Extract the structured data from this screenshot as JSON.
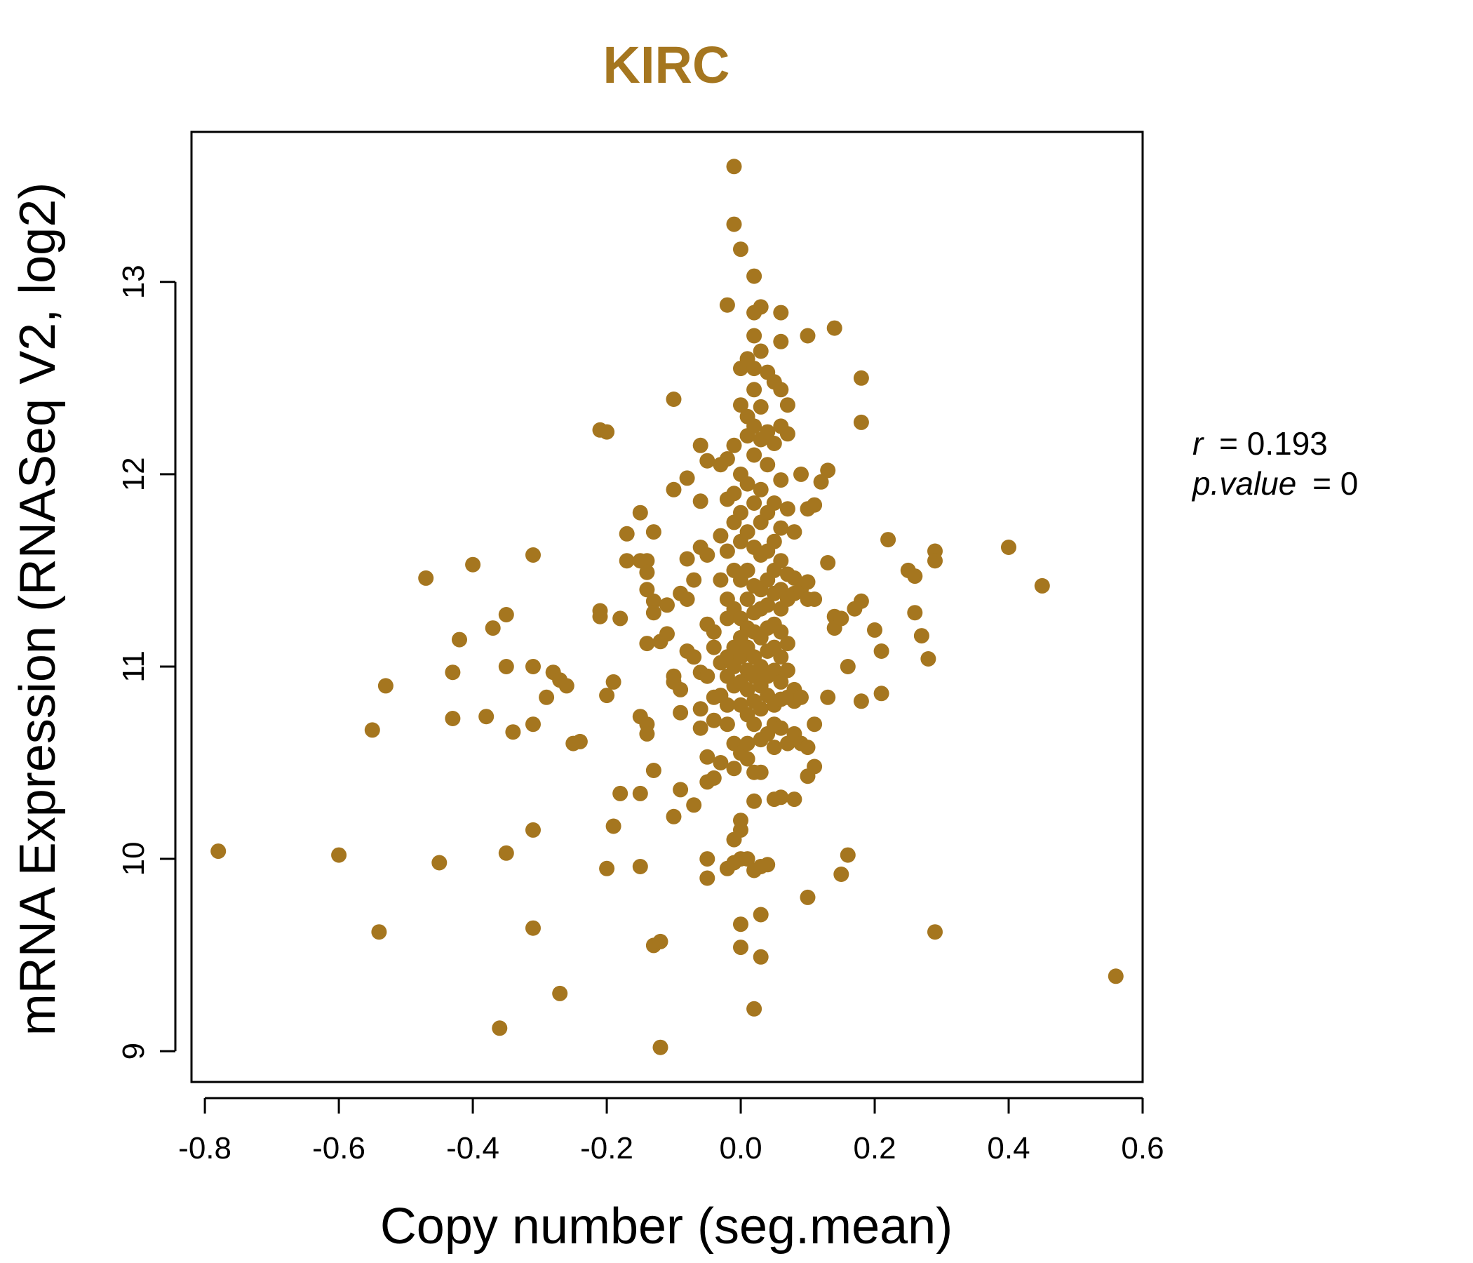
{
  "colors": {
    "point": "#A5761F",
    "title": "#A5761F",
    "axis": "#000000"
  },
  "stats": {
    "r_label": "r",
    "r_value": "0.193",
    "p_label": "p.value",
    "p_value": "0"
  },
  "chart_data": {
    "type": "scatter",
    "title": "KIRC",
    "xlabel": "Copy number (seg.mean)",
    "ylabel": "mRNA Expression (RNASeq V2, log2)",
    "xlim": [
      -0.82,
      0.6
    ],
    "ylim": [
      8.84,
      13.78
    ],
    "xticks": [
      -0.8,
      -0.6,
      -0.4,
      -0.2,
      0.0,
      0.2,
      0.4,
      0.6
    ],
    "xtick_labels": [
      "-0.8",
      "-0.6",
      "-0.4",
      "-0.2",
      "0.0",
      "0.2",
      "0.4",
      "0.6"
    ],
    "yticks": [
      9,
      10,
      11,
      12,
      13
    ],
    "ytick_labels": [
      "9",
      "10",
      "11",
      "12",
      "13"
    ],
    "grid": false,
    "points": [
      [
        -0.78,
        10.04
      ],
      [
        -0.6,
        10.02
      ],
      [
        -0.54,
        9.62
      ],
      [
        -0.55,
        10.67
      ],
      [
        -0.53,
        10.9
      ],
      [
        -0.47,
        11.46
      ],
      [
        -0.45,
        9.98
      ],
      [
        -0.43,
        10.97
      ],
      [
        -0.43,
        10.73
      ],
      [
        -0.42,
        11.14
      ],
      [
        -0.4,
        11.53
      ],
      [
        -0.38,
        10.74
      ],
      [
        -0.37,
        11.2
      ],
      [
        -0.36,
        9.12
      ],
      [
        -0.35,
        11.27
      ],
      [
        -0.35,
        11.0
      ],
      [
        -0.35,
        10.03
      ],
      [
        -0.34,
        10.66
      ],
      [
        -0.31,
        11.58
      ],
      [
        -0.31,
        11.0
      ],
      [
        -0.31,
        10.7
      ],
      [
        -0.31,
        10.15
      ],
      [
        -0.31,
        9.64
      ],
      [
        -0.29,
        10.84
      ],
      [
        -0.28,
        10.97
      ],
      [
        -0.27,
        10.93
      ],
      [
        -0.27,
        9.3
      ],
      [
        -0.26,
        10.9
      ],
      [
        -0.25,
        10.6
      ],
      [
        -0.24,
        10.61
      ],
      [
        -0.21,
        12.23
      ],
      [
        -0.21,
        11.29
      ],
      [
        -0.21,
        11.26
      ],
      [
        -0.2,
        12.22
      ],
      [
        -0.2,
        9.95
      ],
      [
        -0.2,
        10.85
      ],
      [
        -0.19,
        10.92
      ],
      [
        -0.19,
        10.17
      ],
      [
        -0.18,
        11.25
      ],
      [
        -0.18,
        10.34
      ],
      [
        -0.17,
        11.69
      ],
      [
        -0.17,
        11.55
      ],
      [
        -0.15,
        11.8
      ],
      [
        -0.15,
        11.55
      ],
      [
        -0.15,
        10.74
      ],
      [
        -0.15,
        10.34
      ],
      [
        -0.15,
        9.96
      ],
      [
        -0.14,
        11.55
      ],
      [
        -0.14,
        11.49
      ],
      [
        -0.14,
        11.4
      ],
      [
        -0.14,
        10.7
      ],
      [
        -0.14,
        10.65
      ],
      [
        -0.14,
        11.12
      ],
      [
        -0.13,
        11.7
      ],
      [
        -0.13,
        11.34
      ],
      [
        -0.13,
        11.28
      ],
      [
        -0.13,
        10.46
      ],
      [
        -0.13,
        9.55
      ],
      [
        -0.12,
        11.13
      ],
      [
        -0.12,
        9.57
      ],
      [
        -0.12,
        9.02
      ],
      [
        -0.11,
        11.17
      ],
      [
        -0.11,
        11.32
      ],
      [
        -0.1,
        12.39
      ],
      [
        -0.1,
        11.92
      ],
      [
        -0.1,
        10.95
      ],
      [
        -0.1,
        10.92
      ],
      [
        -0.1,
        10.22
      ],
      [
        -0.09,
        11.38
      ],
      [
        -0.09,
        10.88
      ],
      [
        -0.09,
        10.76
      ],
      [
        -0.09,
        10.36
      ],
      [
        -0.08,
        11.98
      ],
      [
        -0.08,
        11.56
      ],
      [
        -0.08,
        11.35
      ],
      [
        -0.08,
        11.08
      ],
      [
        -0.07,
        11.05
      ],
      [
        -0.07,
        10.28
      ],
      [
        -0.07,
        11.45
      ],
      [
        -0.06,
        12.15
      ],
      [
        -0.06,
        11.86
      ],
      [
        -0.06,
        11.62
      ],
      [
        -0.06,
        10.97
      ],
      [
        -0.06,
        10.78
      ],
      [
        -0.06,
        10.68
      ],
      [
        -0.05,
        12.07
      ],
      [
        -0.05,
        11.58
      ],
      [
        -0.05,
        11.22
      ],
      [
        -0.05,
        10.95
      ],
      [
        -0.05,
        10.53
      ],
      [
        -0.05,
        10.4
      ],
      [
        -0.05,
        10.0
      ],
      [
        -0.05,
        9.9
      ],
      [
        -0.04,
        11.18
      ],
      [
        -0.04,
        11.1
      ],
      [
        -0.04,
        10.84
      ],
      [
        -0.04,
        10.72
      ],
      [
        -0.04,
        10.42
      ],
      [
        -0.03,
        12.05
      ],
      [
        -0.03,
        11.68
      ],
      [
        -0.03,
        11.45
      ],
      [
        -0.03,
        11.02
      ],
      [
        -0.03,
        10.85
      ],
      [
        -0.03,
        10.5
      ],
      [
        -0.02,
        12.88
      ],
      [
        -0.02,
        12.08
      ],
      [
        -0.02,
        11.87
      ],
      [
        -0.02,
        11.6
      ],
      [
        -0.02,
        11.35
      ],
      [
        -0.02,
        11.25
      ],
      [
        -0.02,
        11.05
      ],
      [
        -0.02,
        10.95
      ],
      [
        -0.02,
        10.8
      ],
      [
        -0.02,
        10.7
      ],
      [
        -0.02,
        9.95
      ],
      [
        -0.01,
        13.3
      ],
      [
        -0.01,
        12.15
      ],
      [
        -0.01,
        11.9
      ],
      [
        -0.01,
        11.75
      ],
      [
        -0.01,
        11.5
      ],
      [
        -0.01,
        11.3
      ],
      [
        -0.01,
        11.1
      ],
      [
        -0.01,
        11.0
      ],
      [
        -0.01,
        10.9
      ],
      [
        -0.01,
        10.6
      ],
      [
        -0.01,
        10.47
      ],
      [
        -0.01,
        9.98
      ],
      [
        -0.01,
        10.1
      ],
      [
        -0.01,
        13.6
      ],
      [
        0.0,
        13.17
      ],
      [
        0.0,
        12.55
      ],
      [
        0.0,
        12.36
      ],
      [
        0.0,
        12.0
      ],
      [
        0.0,
        11.8
      ],
      [
        0.0,
        11.65
      ],
      [
        0.0,
        11.45
      ],
      [
        0.0,
        11.25
      ],
      [
        0.0,
        11.15
      ],
      [
        0.0,
        11.05
      ],
      [
        0.0,
        10.92
      ],
      [
        0.0,
        10.8
      ],
      [
        0.0,
        10.55
      ],
      [
        0.0,
        10.2
      ],
      [
        0.0,
        10.15
      ],
      [
        0.0,
        9.66
      ],
      [
        0.0,
        9.54
      ],
      [
        0.0,
        10.0
      ],
      [
        0.01,
        12.6
      ],
      [
        0.01,
        12.3
      ],
      [
        0.01,
        12.2
      ],
      [
        0.01,
        11.95
      ],
      [
        0.01,
        11.7
      ],
      [
        0.01,
        11.5
      ],
      [
        0.01,
        11.35
      ],
      [
        0.01,
        11.2
      ],
      [
        0.01,
        11.1
      ],
      [
        0.01,
        10.98
      ],
      [
        0.01,
        10.88
      ],
      [
        0.01,
        10.75
      ],
      [
        0.01,
        10.6
      ],
      [
        0.01,
        10.52
      ],
      [
        0.01,
        10.0
      ],
      [
        0.02,
        13.03
      ],
      [
        0.02,
        12.84
      ],
      [
        0.02,
        12.72
      ],
      [
        0.02,
        12.55
      ],
      [
        0.02,
        12.44
      ],
      [
        0.02,
        12.25
      ],
      [
        0.02,
        12.1
      ],
      [
        0.02,
        11.85
      ],
      [
        0.02,
        11.62
      ],
      [
        0.02,
        11.42
      ],
      [
        0.02,
        11.28
      ],
      [
        0.02,
        11.18
      ],
      [
        0.02,
        11.05
      ],
      [
        0.02,
        10.95
      ],
      [
        0.02,
        10.82
      ],
      [
        0.02,
        10.7
      ],
      [
        0.02,
        10.45
      ],
      [
        0.02,
        10.3
      ],
      [
        0.02,
        9.94
      ],
      [
        0.02,
        9.22
      ],
      [
        0.03,
        12.87
      ],
      [
        0.03,
        12.64
      ],
      [
        0.03,
        12.35
      ],
      [
        0.03,
        12.18
      ],
      [
        0.03,
        11.92
      ],
      [
        0.03,
        11.75
      ],
      [
        0.03,
        11.58
      ],
      [
        0.03,
        11.4
      ],
      [
        0.03,
        11.3
      ],
      [
        0.03,
        11.15
      ],
      [
        0.03,
        11.0
      ],
      [
        0.03,
        10.9
      ],
      [
        0.03,
        10.78
      ],
      [
        0.03,
        10.62
      ],
      [
        0.03,
        10.45
      ],
      [
        0.03,
        9.96
      ],
      [
        0.03,
        9.71
      ],
      [
        0.03,
        9.49
      ],
      [
        0.04,
        12.53
      ],
      [
        0.04,
        12.22
      ],
      [
        0.04,
        12.05
      ],
      [
        0.04,
        11.8
      ],
      [
        0.04,
        11.6
      ],
      [
        0.04,
        11.45
      ],
      [
        0.04,
        11.32
      ],
      [
        0.04,
        11.2
      ],
      [
        0.04,
        11.08
      ],
      [
        0.04,
        10.95
      ],
      [
        0.04,
        10.85
      ],
      [
        0.04,
        10.65
      ],
      [
        0.04,
        9.97
      ],
      [
        0.05,
        12.48
      ],
      [
        0.05,
        12.16
      ],
      [
        0.05,
        11.85
      ],
      [
        0.05,
        11.65
      ],
      [
        0.05,
        11.5
      ],
      [
        0.05,
        11.38
      ],
      [
        0.05,
        11.22
      ],
      [
        0.05,
        11.1
      ],
      [
        0.05,
        10.98
      ],
      [
        0.05,
        10.8
      ],
      [
        0.05,
        10.7
      ],
      [
        0.05,
        10.58
      ],
      [
        0.05,
        10.31
      ],
      [
        0.06,
        12.84
      ],
      [
        0.06,
        12.69
      ],
      [
        0.06,
        12.44
      ],
      [
        0.06,
        12.25
      ],
      [
        0.06,
        11.97
      ],
      [
        0.06,
        11.72
      ],
      [
        0.06,
        11.55
      ],
      [
        0.06,
        11.4
      ],
      [
        0.06,
        11.3
      ],
      [
        0.06,
        11.18
      ],
      [
        0.06,
        11.05
      ],
      [
        0.06,
        10.92
      ],
      [
        0.06,
        10.83
      ],
      [
        0.06,
        10.68
      ],
      [
        0.06,
        10.32
      ],
      [
        0.07,
        12.36
      ],
      [
        0.07,
        12.21
      ],
      [
        0.07,
        11.82
      ],
      [
        0.07,
        11.48
      ],
      [
        0.07,
        11.35
      ],
      [
        0.07,
        11.12
      ],
      [
        0.07,
        10.98
      ],
      [
        0.07,
        10.84
      ],
      [
        0.07,
        10.6
      ],
      [
        0.08,
        11.7
      ],
      [
        0.08,
        11.46
      ],
      [
        0.08,
        11.38
      ],
      [
        0.08,
        10.88
      ],
      [
        0.08,
        10.82
      ],
      [
        0.08,
        10.65
      ],
      [
        0.08,
        10.31
      ],
      [
        0.09,
        12.0
      ],
      [
        0.09,
        11.4
      ],
      [
        0.09,
        10.84
      ],
      [
        0.09,
        10.6
      ],
      [
        0.1,
        12.72
      ],
      [
        0.1,
        11.82
      ],
      [
        0.1,
        11.44
      ],
      [
        0.1,
        11.35
      ],
      [
        0.1,
        10.58
      ],
      [
        0.1,
        10.43
      ],
      [
        0.1,
        9.8
      ],
      [
        0.11,
        11.84
      ],
      [
        0.11,
        11.35
      ],
      [
        0.11,
        10.7
      ],
      [
        0.11,
        10.48
      ],
      [
        0.12,
        11.96
      ],
      [
        0.13,
        12.02
      ],
      [
        0.13,
        10.84
      ],
      [
        0.13,
        11.54
      ],
      [
        0.14,
        12.76
      ],
      [
        0.14,
        11.26
      ],
      [
        0.14,
        11.2
      ],
      [
        0.15,
        11.25
      ],
      [
        0.15,
        9.92
      ],
      [
        0.16,
        11.0
      ],
      [
        0.16,
        10.02
      ],
      [
        0.17,
        11.3
      ],
      [
        0.18,
        12.5
      ],
      [
        0.18,
        12.27
      ],
      [
        0.18,
        11.34
      ],
      [
        0.18,
        10.82
      ],
      [
        0.2,
        11.19
      ],
      [
        0.21,
        11.08
      ],
      [
        0.21,
        10.86
      ],
      [
        0.22,
        11.66
      ],
      [
        0.25,
        11.5
      ],
      [
        0.26,
        11.47
      ],
      [
        0.26,
        11.28
      ],
      [
        0.27,
        11.16
      ],
      [
        0.28,
        11.04
      ],
      [
        0.29,
        9.62
      ],
      [
        0.29,
        11.6
      ],
      [
        0.29,
        11.55
      ],
      [
        0.4,
        11.62
      ],
      [
        0.45,
        11.42
      ],
      [
        0.56,
        9.39
      ]
    ]
  }
}
